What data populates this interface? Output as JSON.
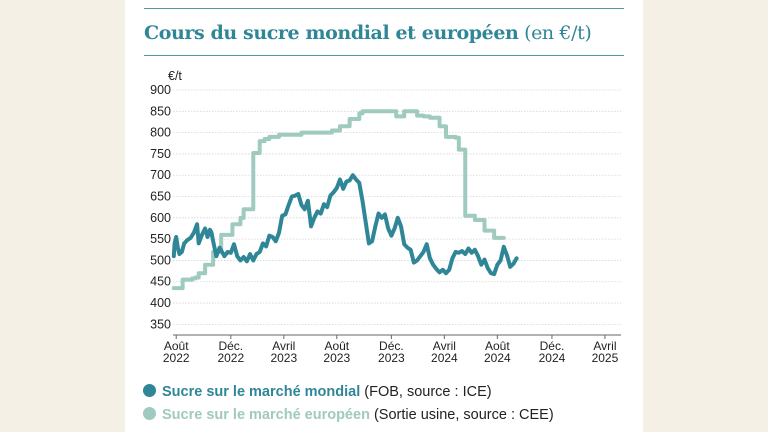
{
  "title": "Cours du sucre mondial et européen",
  "title_suffix": "(en €/t)",
  "chart_data": {
    "type": "line",
    "title": "Cours du sucre mondial et européen (en €/t)",
    "ylabel": "€/t",
    "ylim": [
      325,
      900
    ],
    "yticks": [
      350,
      400,
      450,
      500,
      550,
      600,
      650,
      700,
      750,
      800,
      850,
      900
    ],
    "xlim": [
      2022.56,
      2025.35
    ],
    "xticks": [
      {
        "x": 2022.58,
        "label": [
          "Août",
          "2022"
        ]
      },
      {
        "x": 2022.92,
        "label": [
          "Déc.",
          "2022"
        ]
      },
      {
        "x": 2023.25,
        "label": [
          "Avril",
          "2023"
        ]
      },
      {
        "x": 2023.58,
        "label": [
          "Août",
          "2023"
        ]
      },
      {
        "x": 2023.92,
        "label": [
          "Déc.",
          "2023"
        ]
      },
      {
        "x": 2024.25,
        "label": [
          "Avril",
          "2024"
        ]
      },
      {
        "x": 2024.58,
        "label": [
          "Août",
          "2024"
        ]
      },
      {
        "x": 2024.92,
        "label": [
          "Déc.",
          "2024"
        ]
      },
      {
        "x": 2025.25,
        "label": [
          "Avril",
          "2025"
        ]
      }
    ],
    "grid": true,
    "series": [
      {
        "name": "Sucre sur le marché mondial",
        "note": "(FOB, source : ICE)",
        "color": "#2f8697",
        "step": false,
        "points": [
          [
            2022.565,
            510
          ],
          [
            2022.57,
            540
          ],
          [
            2022.58,
            555
          ],
          [
            2022.59,
            530
          ],
          [
            2022.6,
            515
          ],
          [
            2022.615,
            520
          ],
          [
            2022.63,
            540
          ],
          [
            2022.65,
            548
          ],
          [
            2022.67,
            553
          ],
          [
            2022.69,
            565
          ],
          [
            2022.71,
            585
          ],
          [
            2022.72,
            540
          ],
          [
            2022.74,
            560
          ],
          [
            2022.76,
            575
          ],
          [
            2022.775,
            555
          ],
          [
            2022.79,
            572
          ],
          [
            2022.8,
            565
          ],
          [
            2022.81,
            545
          ],
          [
            2022.83,
            510
          ],
          [
            2022.85,
            530
          ],
          [
            2022.865,
            520
          ],
          [
            2022.88,
            510
          ],
          [
            2022.9,
            520
          ],
          [
            2022.92,
            518
          ],
          [
            2022.94,
            538
          ],
          [
            2022.96,
            510
          ],
          [
            2022.98,
            500
          ],
          [
            2023.0,
            508
          ],
          [
            2023.02,
            498
          ],
          [
            2023.04,
            515
          ],
          [
            2023.06,
            500
          ],
          [
            2023.08,
            515
          ],
          [
            2023.1,
            520
          ],
          [
            2023.12,
            540
          ],
          [
            2023.14,
            533
          ],
          [
            2023.16,
            558
          ],
          [
            2023.18,
            555
          ],
          [
            2023.2,
            545
          ],
          [
            2023.22,
            565
          ],
          [
            2023.24,
            605
          ],
          [
            2023.26,
            608
          ],
          [
            2023.28,
            630
          ],
          [
            2023.3,
            650
          ],
          [
            2023.32,
            652
          ],
          [
            2023.34,
            656
          ],
          [
            2023.36,
            630
          ],
          [
            2023.38,
            620
          ],
          [
            2023.4,
            640
          ],
          [
            2023.42,
            580
          ],
          [
            2023.44,
            600
          ],
          [
            2023.46,
            615
          ],
          [
            2023.48,
            610
          ],
          [
            2023.5,
            632
          ],
          [
            2023.52,
            625
          ],
          [
            2023.54,
            652
          ],
          [
            2023.56,
            660
          ],
          [
            2023.58,
            670
          ],
          [
            2023.6,
            690
          ],
          [
            2023.62,
            668
          ],
          [
            2023.64,
            685
          ],
          [
            2023.66,
            688
          ],
          [
            2023.68,
            700
          ],
          [
            2023.7,
            690
          ],
          [
            2023.72,
            682
          ],
          [
            2023.74,
            640
          ],
          [
            2023.76,
            590
          ],
          [
            2023.78,
            540
          ],
          [
            2023.8,
            545
          ],
          [
            2023.82,
            580
          ],
          [
            2023.84,
            610
          ],
          [
            2023.86,
            600
          ],
          [
            2023.88,
            608
          ],
          [
            2023.9,
            575
          ],
          [
            2023.92,
            558
          ],
          [
            2023.94,
            575
          ],
          [
            2023.96,
            600
          ],
          [
            2023.98,
            580
          ],
          [
            2024.0,
            538
          ],
          [
            2024.02,
            530
          ],
          [
            2024.04,
            525
          ],
          [
            2024.06,
            495
          ],
          [
            2024.08,
            500
          ],
          [
            2024.1,
            510
          ],
          [
            2024.12,
            520
          ],
          [
            2024.14,
            538
          ],
          [
            2024.16,
            505
          ],
          [
            2024.18,
            490
          ],
          [
            2024.2,
            480
          ],
          [
            2024.22,
            472
          ],
          [
            2024.24,
            478
          ],
          [
            2024.26,
            470
          ],
          [
            2024.28,
            478
          ],
          [
            2024.3,
            505
          ],
          [
            2024.32,
            520
          ],
          [
            2024.34,
            518
          ],
          [
            2024.36,
            522
          ],
          [
            2024.38,
            515
          ],
          [
            2024.4,
            528
          ],
          [
            2024.42,
            518
          ],
          [
            2024.44,
            525
          ],
          [
            2024.46,
            510
          ],
          [
            2024.48,
            490
          ],
          [
            2024.5,
            502
          ],
          [
            2024.52,
            482
          ],
          [
            2024.54,
            470
          ],
          [
            2024.56,
            468
          ],
          [
            2024.58,
            490
          ],
          [
            2024.6,
            500
          ],
          [
            2024.62,
            532
          ],
          [
            2024.64,
            512
          ],
          [
            2024.66,
            485
          ],
          [
            2024.68,
            492
          ],
          [
            2024.7,
            505
          ]
        ]
      },
      {
        "name": "Sucre sur le marché européen",
        "note": "(Sortie usine, source : CEE)",
        "color": "#9fcabf",
        "step": true,
        "points": [
          [
            2022.565,
            435
          ],
          [
            2022.6,
            435
          ],
          [
            2022.62,
            455
          ],
          [
            2022.66,
            455
          ],
          [
            2022.68,
            458
          ],
          [
            2022.7,
            460
          ],
          [
            2022.72,
            470
          ],
          [
            2022.76,
            490
          ],
          [
            2022.79,
            490
          ],
          [
            2022.81,
            520
          ],
          [
            2022.83,
            520
          ],
          [
            2022.86,
            560
          ],
          [
            2022.9,
            560
          ],
          [
            2022.93,
            585
          ],
          [
            2022.95,
            585
          ],
          [
            2022.98,
            600
          ],
          [
            2023.0,
            620
          ],
          [
            2023.04,
            620
          ],
          [
            2023.06,
            752
          ],
          [
            2023.08,
            752
          ],
          [
            2023.1,
            780
          ],
          [
            2023.13,
            785
          ],
          [
            2023.16,
            790
          ],
          [
            2023.18,
            790
          ],
          [
            2023.22,
            795
          ],
          [
            2023.34,
            795
          ],
          [
            2023.36,
            800
          ],
          [
            2023.52,
            800
          ],
          [
            2023.55,
            805
          ],
          [
            2023.58,
            805
          ],
          [
            2023.6,
            815
          ],
          [
            2023.64,
            815
          ],
          [
            2023.66,
            832
          ],
          [
            2023.7,
            832
          ],
          [
            2023.72,
            845
          ],
          [
            2023.74,
            850
          ],
          [
            2023.92,
            850
          ],
          [
            2023.95,
            838
          ],
          [
            2023.98,
            838
          ],
          [
            2024.0,
            850
          ],
          [
            2024.06,
            850
          ],
          [
            2024.08,
            840
          ],
          [
            2024.12,
            838
          ],
          [
            2024.16,
            835
          ],
          [
            2024.2,
            835
          ],
          [
            2024.22,
            815
          ],
          [
            2024.24,
            815
          ],
          [
            2024.26,
            790
          ],
          [
            2024.3,
            790
          ],
          [
            2024.32,
            788
          ],
          [
            2024.34,
            760
          ],
          [
            2024.36,
            760
          ],
          [
            2024.38,
            605
          ],
          [
            2024.42,
            605
          ],
          [
            2024.44,
            595
          ],
          [
            2024.48,
            595
          ],
          [
            2024.5,
            570
          ],
          [
            2024.54,
            570
          ],
          [
            2024.56,
            553
          ],
          [
            2024.62,
            553
          ]
        ]
      }
    ]
  }
}
